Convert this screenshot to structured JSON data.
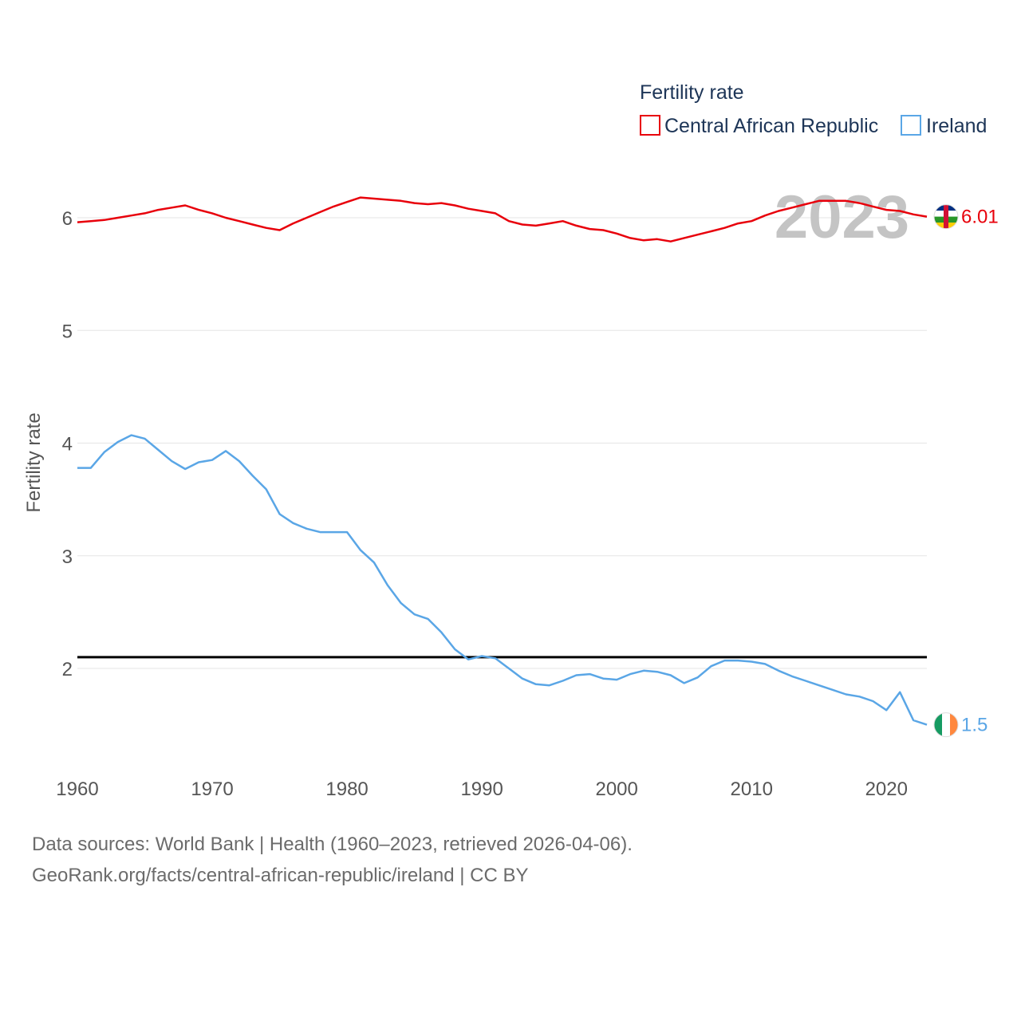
{
  "chart_data": {
    "type": "line",
    "ylabel": "Fertility rate",
    "xlabel": "",
    "legend_title": "Fertility rate",
    "current_year": "2023",
    "xlim": [
      1960,
      2023
    ],
    "ylim": [
      1.3,
      6.6
    ],
    "reference_line": 2.1,
    "x_ticks": [
      "1960",
      "1970",
      "1980",
      "1990",
      "2000",
      "2010",
      "2020"
    ],
    "y_ticks": [
      "2",
      "3",
      "4",
      "5",
      "6"
    ],
    "series": [
      {
        "name": "Central African Republic",
        "color": "#e8000b",
        "end_label": "6.01",
        "start_year": 1960,
        "values": [
          5.96,
          5.97,
          5.98,
          6.0,
          6.02,
          6.04,
          6.07,
          6.09,
          6.11,
          6.07,
          6.04,
          6.0,
          5.97,
          5.94,
          5.91,
          5.89,
          5.95,
          6.0,
          6.05,
          6.1,
          6.14,
          6.18,
          6.17,
          6.16,
          6.15,
          6.13,
          6.12,
          6.13,
          6.11,
          6.08,
          6.06,
          6.04,
          5.97,
          5.94,
          5.93,
          5.95,
          5.97,
          5.93,
          5.9,
          5.89,
          5.86,
          5.82,
          5.8,
          5.81,
          5.79,
          5.82,
          5.85,
          5.88,
          5.91,
          5.95,
          5.97,
          6.02,
          6.06,
          6.09,
          6.12,
          6.15,
          6.15,
          6.15,
          6.13,
          6.1,
          6.07,
          6.06,
          6.03,
          6.01
        ]
      },
      {
        "name": "Ireland",
        "color": "#5aa6e6",
        "end_label": "1.5",
        "start_year": 1960,
        "values": [
          3.78,
          3.78,
          3.92,
          4.01,
          4.07,
          4.04,
          3.94,
          3.84,
          3.77,
          3.83,
          3.85,
          3.93,
          3.84,
          3.71,
          3.59,
          3.37,
          3.29,
          3.24,
          3.21,
          3.21,
          3.21,
          3.05,
          2.94,
          2.74,
          2.58,
          2.48,
          2.44,
          2.32,
          2.17,
          2.08,
          2.11,
          2.09,
          2.0,
          1.91,
          1.86,
          1.85,
          1.89,
          1.94,
          1.95,
          1.91,
          1.9,
          1.95,
          1.98,
          1.97,
          1.94,
          1.87,
          1.92,
          2.02,
          2.07,
          2.07,
          2.06,
          2.04,
          1.98,
          1.93,
          1.89,
          1.85,
          1.81,
          1.77,
          1.75,
          1.71,
          1.63,
          1.79,
          1.54,
          1.5
        ]
      }
    ]
  },
  "source": {
    "line1": "Data sources: World Bank | Health (1960–2023, retrieved 2026-04-06).",
    "line2": "GeoRank.org/facts/central-african-republic/ireland | CC BY"
  },
  "colors": {
    "grid": "#e6e6e6",
    "reference": "#000000",
    "car_flag": [
      "#003082",
      "#ffffff",
      "#289728",
      "#ffce00",
      "#d21034"
    ],
    "ireland_flag": [
      "#169b62",
      "#ffffff",
      "#ff883e"
    ]
  }
}
